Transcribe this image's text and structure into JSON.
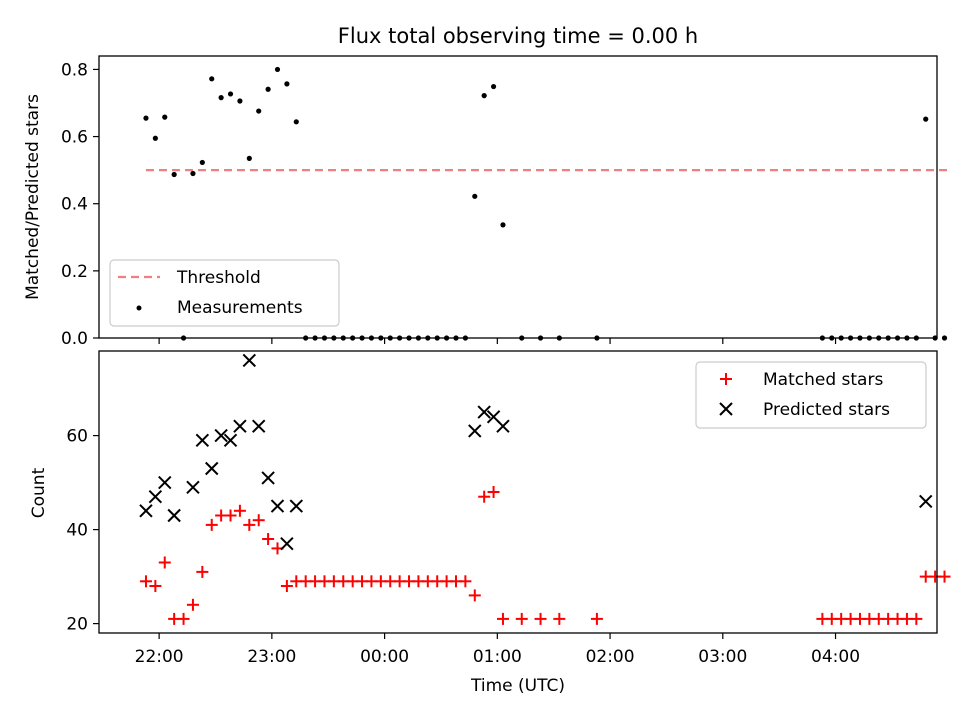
{
  "chart_data": [
    {
      "type": "scatter",
      "title": "Flux total observing time = 0.00 h",
      "xlabel": "",
      "ylabel": "Matched/Predicted stars",
      "xlim": [
        "21:28",
        "04:54"
      ],
      "ylim": [
        0,
        0.84
      ],
      "yticks": [
        0.0,
        0.2,
        0.4,
        0.6,
        0.8
      ],
      "ytick_labels": [
        "0.0",
        "0.2",
        "0.4",
        "0.6",
        "0.8"
      ],
      "grid": false,
      "legend": {
        "position": "lower-left",
        "entries": [
          "Threshold",
          "Measurements"
        ]
      },
      "threshold": {
        "name": "Threshold",
        "value": 0.5,
        "x": [
          "21:53",
          "05:01"
        ],
        "color": "#f08080"
      },
      "series": [
        {
          "name": "Measurements",
          "color": "#000000",
          "marker": "dot",
          "points": [
            [
              "21:53",
              0.655
            ],
            [
              "21:58",
              0.595
            ],
            [
              "22:03",
              0.658
            ],
            [
              "22:08",
              0.487
            ],
            [
              "22:13",
              0.0
            ],
            [
              "22:18",
              0.49
            ],
            [
              "22:23",
              0.523
            ],
            [
              "22:28",
              0.772
            ],
            [
              "22:33",
              0.716
            ],
            [
              "22:38",
              0.727
            ],
            [
              "22:43",
              0.706
            ],
            [
              "22:48",
              0.535
            ],
            [
              "22:53",
              0.676
            ],
            [
              "22:58",
              0.741
            ],
            [
              "23:03",
              0.8
            ],
            [
              "23:08",
              0.757
            ],
            [
              "23:13",
              0.644
            ],
            [
              "23:18",
              0.0
            ],
            [
              "23:23",
              0.0
            ],
            [
              "23:28",
              0.0
            ],
            [
              "23:33",
              0.0
            ],
            [
              "23:38",
              0.0
            ],
            [
              "23:43",
              0.0
            ],
            [
              "23:48",
              0.0
            ],
            [
              "23:53",
              0.0
            ],
            [
              "23:58",
              0.0
            ],
            [
              "00:03",
              0.0
            ],
            [
              "00:08",
              0.0
            ],
            [
              "00:13",
              0.0
            ],
            [
              "00:18",
              0.0
            ],
            [
              "00:23",
              0.0
            ],
            [
              "00:28",
              0.0
            ],
            [
              "00:33",
              0.0
            ],
            [
              "00:38",
              0.0
            ],
            [
              "00:43",
              0.0
            ],
            [
              "00:48",
              0.422
            ],
            [
              "00:53",
              0.722
            ],
            [
              "00:58",
              0.749
            ],
            [
              "01:03",
              0.337
            ],
            [
              "01:13",
              0.0
            ],
            [
              "01:23",
              0.0
            ],
            [
              "01:33",
              0.0
            ],
            [
              "01:53",
              0.0
            ],
            [
              "03:53",
              0.0
            ],
            [
              "03:58",
              0.0
            ],
            [
              "04:03",
              0.0
            ],
            [
              "04:08",
              0.0
            ],
            [
              "04:13",
              0.0
            ],
            [
              "04:18",
              0.0
            ],
            [
              "04:23",
              0.0
            ],
            [
              "04:28",
              0.0
            ],
            [
              "04:33",
              0.0
            ],
            [
              "04:38",
              0.0
            ],
            [
              "04:43",
              0.0
            ],
            [
              "04:48",
              0.652
            ],
            [
              "04:53",
              0.0
            ],
            [
              "04:58",
              0.0
            ]
          ]
        }
      ]
    },
    {
      "type": "scatter",
      "title": "",
      "xlabel": "Time (UTC)",
      "ylabel": "Count",
      "xlim": [
        "21:28",
        "04:54"
      ],
      "ylim": [
        18,
        78
      ],
      "yticks": [
        20,
        40,
        60
      ],
      "ytick_labels": [
        "20",
        "40",
        "60"
      ],
      "xticks": [
        "22:00",
        "23:00",
        "00:00",
        "01:00",
        "02:00",
        "03:00",
        "04:00"
      ],
      "grid": false,
      "legend": {
        "position": "upper-right",
        "entries": [
          "Matched stars",
          "Predicted stars"
        ]
      },
      "series": [
        {
          "name": "Matched stars",
          "color": "#ff0000",
          "marker": "plus",
          "points": [
            [
              "21:53",
              29
            ],
            [
              "21:58",
              28
            ],
            [
              "22:03",
              33
            ],
            [
              "22:08",
              21
            ],
            [
              "22:13",
              21
            ],
            [
              "22:18",
              24
            ],
            [
              "22:23",
              31
            ],
            [
              "22:28",
              41
            ],
            [
              "22:33",
              43
            ],
            [
              "22:38",
              43
            ],
            [
              "22:43",
              44
            ],
            [
              "22:48",
              41
            ],
            [
              "22:53",
              42
            ],
            [
              "22:58",
              38
            ],
            [
              "23:03",
              36
            ],
            [
              "23:08",
              28
            ],
            [
              "23:13",
              29
            ],
            [
              "23:18",
              29
            ],
            [
              "23:23",
              29
            ],
            [
              "23:28",
              29
            ],
            [
              "23:33",
              29
            ],
            [
              "23:38",
              29
            ],
            [
              "23:43",
              29
            ],
            [
              "23:48",
              29
            ],
            [
              "23:53",
              29
            ],
            [
              "23:58",
              29
            ],
            [
              "00:03",
              29
            ],
            [
              "00:08",
              29
            ],
            [
              "00:13",
              29
            ],
            [
              "00:18",
              29
            ],
            [
              "00:23",
              29
            ],
            [
              "00:28",
              29
            ],
            [
              "00:33",
              29
            ],
            [
              "00:38",
              29
            ],
            [
              "00:43",
              29
            ],
            [
              "00:48",
              26
            ],
            [
              "00:53",
              47
            ],
            [
              "00:58",
              48
            ],
            [
              "01:03",
              21
            ],
            [
              "01:13",
              21
            ],
            [
              "01:23",
              21
            ],
            [
              "01:33",
              21
            ],
            [
              "01:53",
              21
            ],
            [
              "03:53",
              21
            ],
            [
              "03:58",
              21
            ],
            [
              "04:03",
              21
            ],
            [
              "04:08",
              21
            ],
            [
              "04:13",
              21
            ],
            [
              "04:18",
              21
            ],
            [
              "04:23",
              21
            ],
            [
              "04:28",
              21
            ],
            [
              "04:33",
              21
            ],
            [
              "04:38",
              21
            ],
            [
              "04:43",
              21
            ],
            [
              "04:48",
              30
            ],
            [
              "04:53",
              30
            ],
            [
              "04:58",
              30
            ]
          ]
        },
        {
          "name": "Predicted stars",
          "color": "#000000",
          "marker": "x",
          "points": [
            [
              "21:53",
              44
            ],
            [
              "21:58",
              47
            ],
            [
              "22:03",
              50
            ],
            [
              "22:08",
              43
            ],
            [
              "22:18",
              49
            ],
            [
              "22:23",
              59
            ],
            [
              "22:28",
              53
            ],
            [
              "22:33",
              60
            ],
            [
              "22:38",
              59
            ],
            [
              "22:43",
              62
            ],
            [
              "22:48",
              76
            ],
            [
              "22:53",
              62
            ],
            [
              "22:58",
              51
            ],
            [
              "23:03",
              45
            ],
            [
              "23:08",
              37
            ],
            [
              "23:13",
              45
            ],
            [
              "00:48",
              61
            ],
            [
              "00:53",
              65
            ],
            [
              "00:58",
              64
            ],
            [
              "01:03",
              62
            ],
            [
              "04:48",
              46
            ]
          ]
        }
      ]
    }
  ]
}
